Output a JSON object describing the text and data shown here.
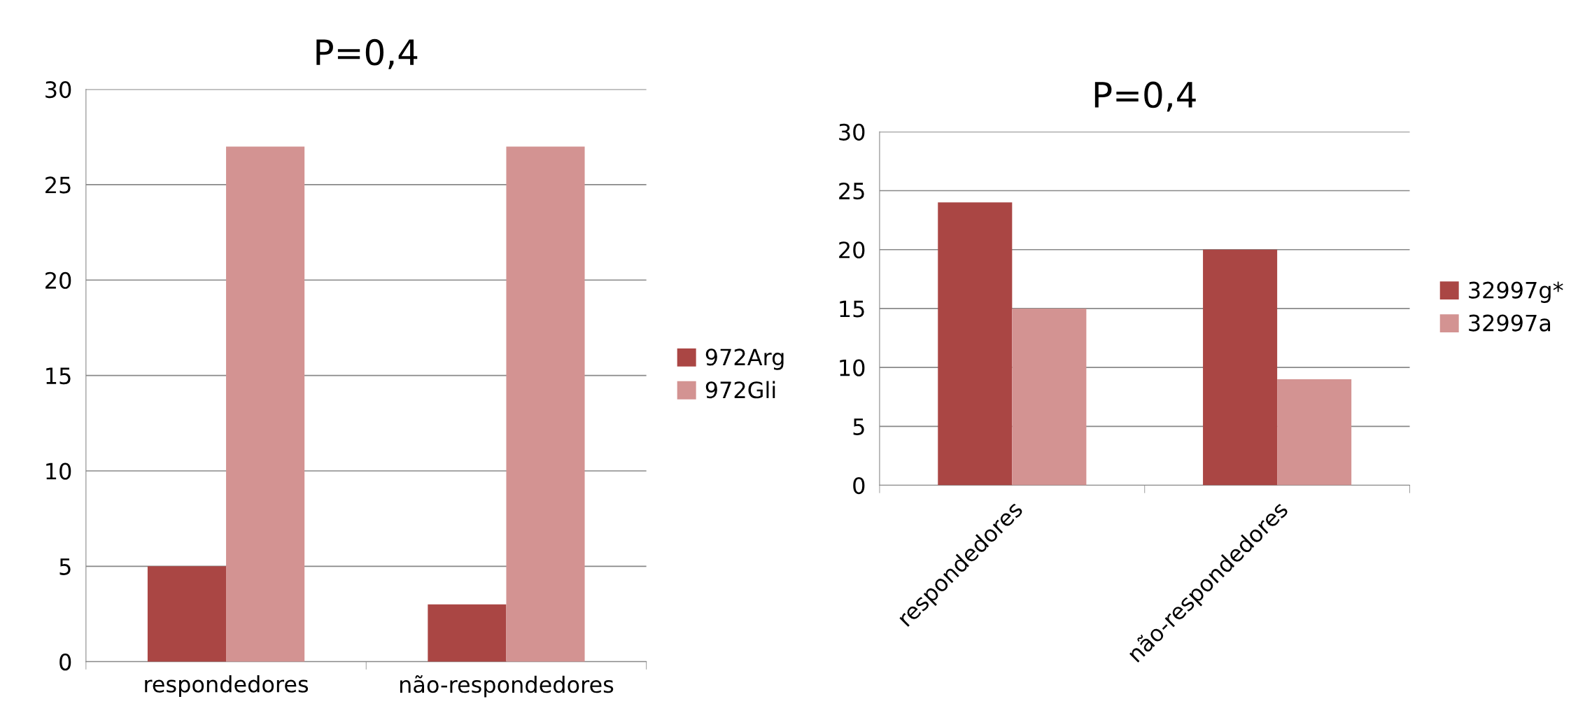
{
  "chart_data": [
    {
      "type": "bar",
      "title": "P=0,4",
      "categories": [
        "respondedores",
        "não-respondedores"
      ],
      "series": [
        {
          "name": "972Arg",
          "color": "#aa4644",
          "values": [
            5,
            3
          ]
        },
        {
          "name": "972Gli",
          "color": "#d39392",
          "values": [
            27,
            27
          ]
        }
      ],
      "ylim": [
        0,
        30
      ],
      "yticks": [
        0,
        5,
        10,
        15,
        20,
        25,
        30
      ],
      "grid": "y",
      "legend": "right"
    },
    {
      "type": "bar",
      "title": "P=0,4",
      "categories": [
        "respondedores",
        "não-respondedores"
      ],
      "series": [
        {
          "name": "32997g*",
          "color": "#aa4644",
          "values": [
            24,
            20
          ]
        },
        {
          "name": "32997a",
          "color": "#d39392",
          "values": [
            15,
            9
          ]
        }
      ],
      "ylim": [
        0,
        30
      ],
      "yticks": [
        0,
        5,
        10,
        15,
        20,
        25,
        30
      ],
      "grid": "y",
      "legend": "right"
    }
  ]
}
